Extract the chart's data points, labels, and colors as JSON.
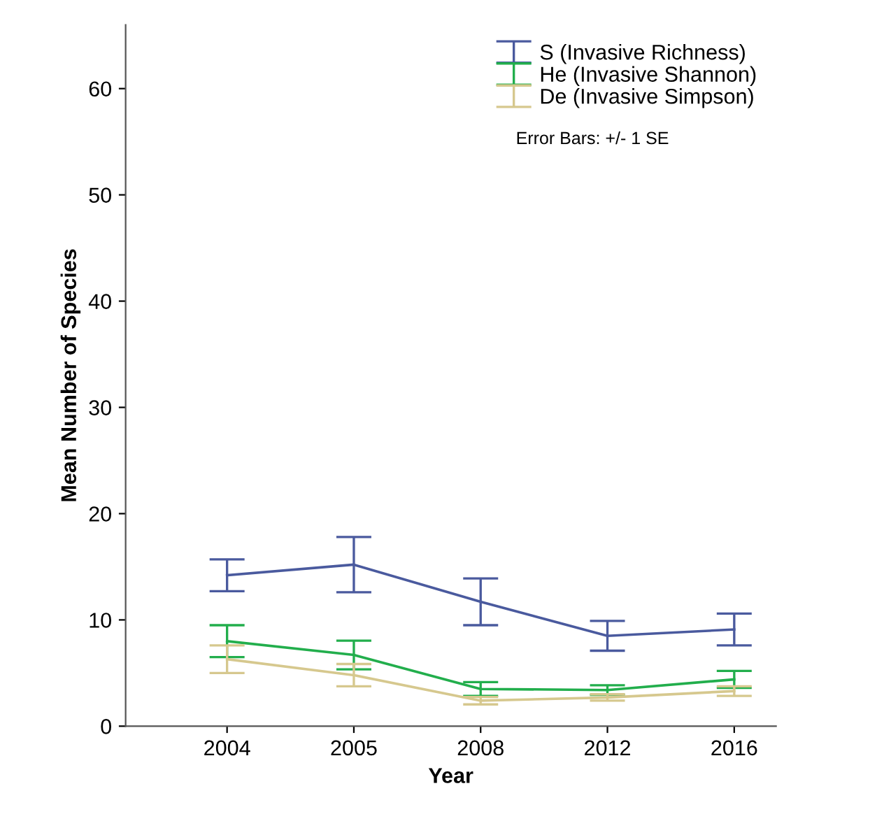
{
  "chart_data": {
    "type": "line",
    "xlabel": "Year",
    "ylabel": "Mean Number of Species",
    "categories": [
      "2004",
      "2005",
      "2008",
      "2012",
      "2016"
    ],
    "series": [
      {
        "name": "S (Invasive Richness)",
        "color": "#4a5a9e",
        "values": [
          14.2,
          15.2,
          11.7,
          8.5,
          9.1
        ],
        "errors": [
          1.5,
          2.6,
          2.2,
          1.4,
          1.5
        ]
      },
      {
        "name": "He (Invasive Shannon)",
        "color": "#22ae4c",
        "values": [
          8.0,
          6.7,
          3.5,
          3.4,
          4.4
        ],
        "errors": [
          1.5,
          1.35,
          0.65,
          0.45,
          0.8
        ]
      },
      {
        "name": "De (Invasive Simpson)",
        "color": "#d6c88e",
        "values": [
          6.3,
          4.8,
          2.4,
          2.7,
          3.3
        ],
        "errors": [
          1.3,
          1.05,
          0.35,
          0.3,
          0.45
        ]
      }
    ],
    "ylim": [
      0,
      66
    ],
    "yticks": [
      0,
      10,
      20,
      30,
      40,
      50,
      60
    ],
    "grid": false,
    "legend": "top right",
    "marker": "none",
    "line_style": "solid",
    "annotations": [
      "Error Bars: +/- 1 SE"
    ]
  }
}
